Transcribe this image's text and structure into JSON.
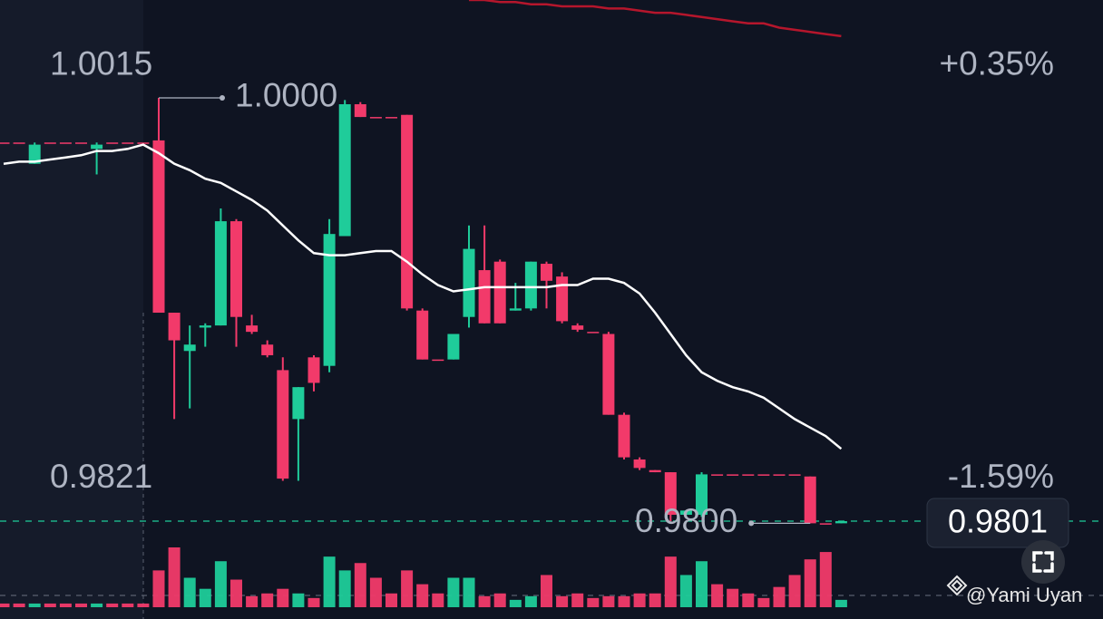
{
  "chart_data": {
    "type": "candlestick",
    "categories": [
      null,
      null,
      null,
      null,
      null,
      null,
      null,
      null,
      null,
      null,
      null,
      null,
      null,
      null,
      null,
      null,
      null,
      null,
      null,
      null,
      null,
      null,
      null,
      null,
      null,
      null,
      null,
      null,
      null,
      null,
      null,
      null,
      null,
      null,
      null,
      null,
      null,
      null,
      null,
      null,
      null,
      null,
      null,
      null,
      null,
      null,
      null,
      null,
      null,
      null,
      null,
      null,
      null,
      null,
      null
    ],
    "open": [
      0.9979,
      0.9979,
      0.9969,
      0.9979,
      0.9979,
      0.9979,
      0.9976,
      0.9979,
      0.9979,
      0.9979,
      0.998,
      0.9899,
      0.9881,
      0.9892,
      0.9893,
      0.9942,
      0.9893,
      0.9884,
      0.9872,
      0.9849,
      0.9878,
      0.9874,
      0.9935,
      0.9997,
      0.9991,
      0.9991,
      0.9992,
      0.99,
      0.9877,
      0.9877,
      0.9897,
      0.9919,
      0.9923,
      0.99,
      0.9901,
      0.9922,
      0.9916,
      0.9893,
      0.989,
      0.9889,
      0.9851,
      0.983,
      0.9825,
      0.9824,
      0.9804,
      0.9804,
      0.9823,
      0.9823,
      0.9823,
      0.9823,
      0.9823,
      0.9823,
      0.9822,
      0.98,
      0.98
    ],
    "high": [
      0.9979,
      0.9979,
      0.9979,
      0.9979,
      0.9979,
      0.9979,
      0.9979,
      0.9979,
      0.9979,
      0.9979,
      1.0,
      0.9899,
      0.9893,
      0.9894,
      0.9948,
      0.9943,
      0.9898,
      0.9886,
      0.9878,
      0.9864,
      0.9879,
      0.9943,
      0.9999,
      0.9998,
      0.9991,
      0.9991,
      0.9992,
      0.9901,
      0.9877,
      0.9889,
      0.994,
      0.994,
      0.9924,
      0.9913,
      0.9923,
      0.9923,
      0.9918,
      0.9894,
      0.989,
      0.989,
      0.9852,
      0.9831,
      0.9825,
      0.9824,
      0.9806,
      0.9824,
      0.9823,
      0.9823,
      0.9823,
      0.9823,
      0.9823,
      0.9823,
      0.9822,
      0.98,
      0.9801
    ],
    "low": [
      0.9979,
      0.9979,
      0.9969,
      0.9979,
      0.9979,
      0.9979,
      0.9964,
      0.9979,
      0.9979,
      0.9979,
      0.9899,
      0.9849,
      0.9854,
      0.9883,
      0.9893,
      0.9883,
      0.9889,
      0.9878,
      0.982,
      0.982,
      0.9862,
      0.9871,
      0.9935,
      0.9991,
      0.9991,
      0.9991,
      0.99,
      0.9877,
      0.9877,
      0.9877,
      0.9892,
      0.9894,
      0.9894,
      0.99,
      0.99,
      0.9901,
      0.9894,
      0.989,
      0.989,
      0.9851,
      0.983,
      0.9825,
      0.9824,
      0.9801,
      0.9804,
      0.9803,
      0.9823,
      0.9823,
      0.9823,
      0.9823,
      0.9823,
      0.9823,
      0.98,
      0.98,
      0.98
    ],
    "close": [
      0.9979,
      0.9979,
      0.9978,
      0.9979,
      0.9979,
      0.9979,
      0.9978,
      0.9979,
      0.9979,
      0.9979,
      0.9899,
      0.9886,
      0.9884,
      0.9893,
      0.9942,
      0.9897,
      0.989,
      0.9879,
      0.9821,
      0.9864,
      0.9866,
      0.9936,
      0.9997,
      0.9991,
      0.9991,
      0.9991,
      0.9901,
      0.9877,
      0.9877,
      0.9889,
      0.9929,
      0.9894,
      0.9894,
      0.9901,
      0.9923,
      0.9914,
      0.9895,
      0.9891,
      0.989,
      0.9851,
      0.9831,
      0.9826,
      0.9824,
      0.9804,
      0.9806,
      0.9823,
      0.9823,
      0.9823,
      0.9823,
      0.9823,
      0.9823,
      0.9823,
      0.98,
      0.98,
      0.9801
    ],
    "volume": [
      4,
      4,
      4,
      4,
      4,
      4,
      4,
      4,
      4,
      4,
      40,
      65,
      32,
      20,
      50,
      30,
      12,
      15,
      20,
      15,
      10,
      55,
      40,
      48,
      32,
      15,
      40,
      25,
      15,
      32,
      32,
      12,
      15,
      8,
      12,
      35,
      12,
      15,
      10,
      12,
      12,
      15,
      15,
      55,
      35,
      50,
      25,
      20,
      15,
      10,
      22,
      35,
      52,
      60,
      8
    ],
    "up_color": "#1fcc9a",
    "down_color": "#f23a6a",
    "lines": [
      {
        "color": "#ffffff",
        "values": [
          0.9969,
          0.997,
          0.997,
          0.9971,
          0.9972,
          0.9973,
          0.9975,
          0.9975,
          0.9976,
          0.9978,
          0.9974,
          0.9969,
          0.9966,
          0.9962,
          0.996,
          0.9956,
          0.9952,
          0.9947,
          0.994,
          0.9933,
          0.9927,
          0.9926,
          0.9926,
          0.9927,
          0.9928,
          0.9928,
          0.9923,
          0.9917,
          0.9912,
          0.9909,
          0.991,
          0.9911,
          0.9911,
          0.9911,
          0.9911,
          0.9911,
          0.9912,
          0.9912,
          0.9915,
          0.9915,
          0.9913,
          0.9908,
          0.9899,
          0.9889,
          0.9879,
          0.9871,
          0.9867,
          0.9864,
          0.9862,
          0.9859,
          0.9854,
          0.9849,
          0.9845,
          0.9841,
          0.9835
        ]
      },
      {
        "color": "#b5162c",
        "values": [
          null,
          null,
          null,
          null,
          null,
          null,
          null,
          null,
          null,
          null,
          null,
          null,
          null,
          null,
          null,
          null,
          null,
          null,
          null,
          null,
          null,
          null,
          null,
          null,
          null,
          null,
          null,
          null,
          null,
          null,
          1.0046,
          1.0046,
          1.0045,
          1.0045,
          1.0044,
          1.0044,
          1.0043,
          1.0043,
          1.0043,
          1.0042,
          1.0042,
          1.0041,
          1.004,
          1.004,
          1.0039,
          1.0038,
          1.0037,
          1.0036,
          1.0035,
          1.0035,
          1.0033,
          1.0032,
          1.0031,
          1.003,
          1.0029
        ]
      }
    ],
    "ylim": [
      0.9755,
      1.0046
    ],
    "range_high": 1.0015,
    "range_high_change": "+0.35%",
    "range_low": 0.9821,
    "range_low_change": "-1.59%",
    "max_marker": {
      "value": 1.0,
      "label": "1.0000"
    },
    "min_marker": {
      "value": 0.98,
      "label": "0.9800"
    },
    "last_price": 0.9801,
    "watermark": "@Yami Uyan"
  }
}
